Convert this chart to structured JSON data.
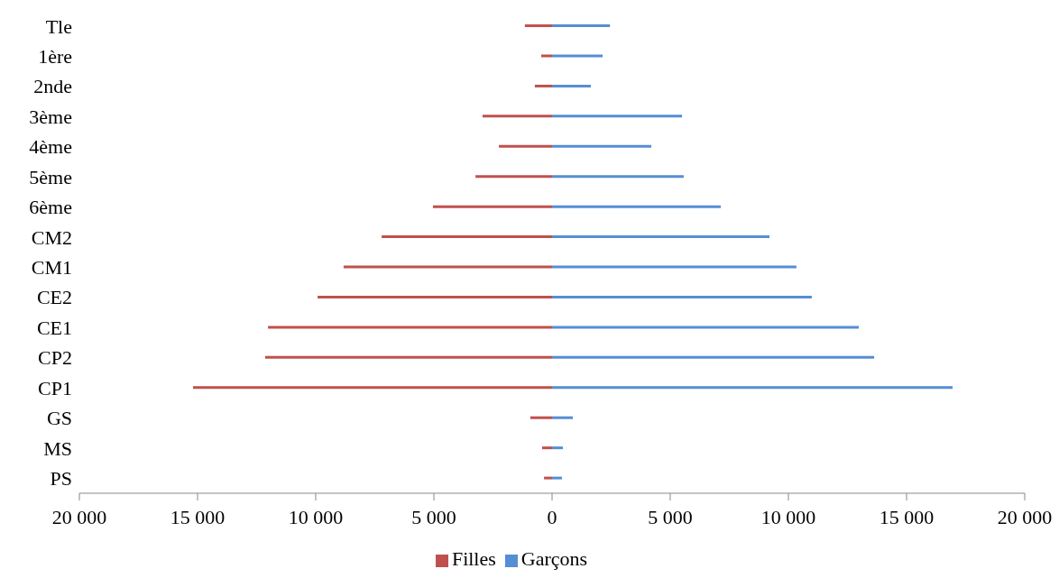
{
  "chart_data": {
    "type": "bar",
    "orientation": "horizontal",
    "stacked": true,
    "categories": [
      "Tle",
      "1ère",
      "2nde",
      "3ème",
      "4ème",
      "5ème",
      "6ème",
      "CM2",
      "CM1",
      "CE2",
      "CE1",
      "CP2",
      "CP1",
      "GS",
      "MS",
      "PS"
    ],
    "series": [
      {
        "name": "Garçons",
        "color": "#558ed5",
        "values": [
          2450,
          2140,
          1640,
          5500,
          4200,
          5570,
          7140,
          9200,
          10340,
          10990,
          12980,
          13630,
          16950,
          880,
          460,
          420
        ]
      },
      {
        "name": "Filles",
        "color": "#c0504d",
        "values": [
          -1150,
          -460,
          -730,
          -2940,
          -2250,
          -3240,
          -5040,
          -7210,
          -8820,
          -9920,
          -12020,
          -12140,
          -15190,
          -920,
          -420,
          -340
        ]
      }
    ],
    "xlim": [
      -20000,
      20000
    ],
    "xticks": [
      {
        "value": -20000,
        "label": "20 000"
      },
      {
        "value": -15000,
        "label": "15 000"
      },
      {
        "value": -10000,
        "label": "10 000"
      },
      {
        "value": -5000,
        "label": "5 000"
      },
      0,
      {
        "value": 5000,
        "label": "5 000"
      },
      {
        "value": 10000,
        "label": "10 000"
      },
      {
        "value": 15000,
        "label": "15 000"
      },
      {
        "value": 20000,
        "label": "20 000"
      }
    ],
    "grid": false,
    "legend": "bottom"
  }
}
